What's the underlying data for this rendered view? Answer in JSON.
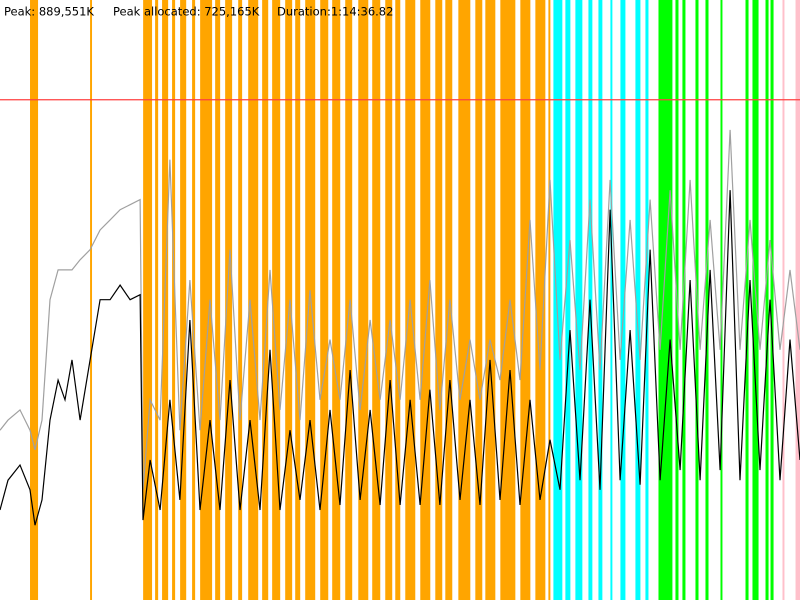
{
  "header": {
    "peak": "Peak: 889,551K",
    "peak_allocated": "Peak allocated: 725,165K",
    "duration": "Duration:1:14:36.82"
  },
  "chart_data": {
    "type": "line",
    "xlim": [
      0,
      4477
    ],
    "ylim": [
      0,
      1067000
    ],
    "peak": 889551,
    "peak_color": "#ff4040",
    "bands": [
      {
        "color": "#ffa500",
        "ranges": [
          [
            168,
            213
          ],
          [
            504,
            515
          ],
          [
            801,
            851
          ],
          [
            868,
            885
          ],
          [
            907,
            941
          ],
          [
            963,
            980
          ],
          [
            1008,
            1042
          ],
          [
            1075,
            1092
          ],
          [
            1120,
            1187
          ],
          [
            1204,
            1232
          ],
          [
            1260,
            1299
          ],
          [
            1333,
            1355
          ],
          [
            1389,
            1445
          ],
          [
            1467,
            1501
          ],
          [
            1523,
            1568
          ],
          [
            1596,
            1635
          ],
          [
            1652,
            1680
          ],
          [
            1708,
            1764
          ],
          [
            1792,
            1837
          ],
          [
            1859,
            1904
          ],
          [
            1932,
            1971
          ],
          [
            2005,
            2061
          ],
          [
            2083,
            2128
          ],
          [
            2156,
            2195
          ],
          [
            2212,
            2240
          ],
          [
            2268,
            2324
          ],
          [
            2352,
            2408
          ],
          [
            2436,
            2475
          ],
          [
            2492,
            2531
          ],
          [
            2565,
            2632
          ],
          [
            2660,
            2699
          ],
          [
            2716,
            2772
          ],
          [
            2800,
            2884
          ],
          [
            2912,
            2968
          ],
          [
            2996,
            3052
          ],
          [
            3069,
            3080
          ]
        ]
      },
      {
        "color": "#00ffff",
        "ranges": [
          [
            3097,
            3147
          ],
          [
            3164,
            3192
          ],
          [
            3220,
            3259
          ],
          [
            3293,
            3315
          ],
          [
            3349,
            3371
          ],
          [
            3416,
            3427
          ],
          [
            3472,
            3500
          ],
          [
            3556,
            3584
          ],
          [
            3612,
            3629
          ]
        ]
      },
      {
        "color": "#00ff00",
        "ranges": [
          [
            3685,
            3763
          ],
          [
            3780,
            3797
          ],
          [
            3819,
            3836
          ],
          [
            3892,
            3909
          ],
          [
            3948,
            3965
          ],
          [
            4032,
            4043
          ],
          [
            4172,
            4189
          ],
          [
            4211,
            4245
          ],
          [
            4284,
            4301
          ],
          [
            4312,
            4329
          ]
        ]
      },
      {
        "color": "#ffc0cb",
        "ranges": [
          [
            4379,
            4390
          ],
          [
            4452,
            4477
          ]
        ]
      }
    ],
    "x": [
      0,
      45,
      112,
      168,
      196,
      235,
      280,
      325,
      364,
      403,
      448,
      504,
      560,
      616,
      672,
      728,
      784,
      800,
      840,
      896,
      951,
      1007,
      1063,
      1119,
      1175,
      1231,
      1287,
      1343,
      1399,
      1455,
      1511,
      1567,
      1623,
      1679,
      1735,
      1791,
      1847,
      1903,
      1959,
      2015,
      2071,
      2127,
      2183,
      2239,
      2295,
      2351,
      2406,
      2462,
      2518,
      2574,
      2630,
      2686,
      2742,
      2798,
      2854,
      2910,
      2966,
      3022,
      3078,
      3134,
      3190,
      3246,
      3302,
      3358,
      3414,
      3470,
      3526,
      3582,
      3638,
      3694,
      3750,
      3806,
      3862,
      3918,
      3974,
      4030,
      4086,
      4141,
      4197,
      4253,
      4309,
      4365,
      4421,
      4477
    ],
    "series": [
      {
        "color": "#a0a0a0",
        "values": [
          302000,
          320000,
          338000,
          302000,
          267000,
          320000,
          534000,
          587000,
          587000,
          587000,
          605000,
          623000,
          658000,
          676000,
          694000,
          703000,
          712000,
          196000,
          356000,
          320000,
          783000,
          302000,
          569000,
          302000,
          534000,
          320000,
          623000,
          320000,
          534000,
          320000,
          587000,
          338000,
          534000,
          320000,
          551000,
          356000,
          463000,
          356000,
          534000,
          338000,
          498000,
          356000,
          498000,
          356000,
          534000,
          356000,
          569000,
          338000,
          534000,
          356000,
          463000,
          356000,
          463000,
          391000,
          534000,
          391000,
          676000,
          409000,
          747000,
          427000,
          640000,
          409000,
          712000,
          409000,
          747000,
          427000,
          676000,
          427000,
          712000,
          445000,
          729000,
          445000,
          747000,
          445000,
          676000,
          445000,
          836000,
          445000,
          676000,
          445000,
          640000,
          445000,
          587000,
          445000
        ]
      },
      {
        "color": "#000000",
        "values": [
          160000,
          213000,
          240000,
          196000,
          133000,
          178000,
          320000,
          391000,
          356000,
          427000,
          320000,
          427000,
          534000,
          534000,
          560000,
          534000,
          543000,
          142000,
          249000,
          160000,
          356000,
          178000,
          498000,
          160000,
          320000,
          160000,
          391000,
          160000,
          320000,
          160000,
          445000,
          160000,
          302000,
          178000,
          320000,
          160000,
          338000,
          169000,
          409000,
          178000,
          338000,
          169000,
          391000,
          169000,
          356000,
          169000,
          374000,
          169000,
          391000,
          178000,
          356000,
          169000,
          427000,
          178000,
          409000,
          169000,
          356000,
          178000,
          285000,
          196000,
          480000,
          213000,
          534000,
          196000,
          694000,
          213000,
          480000,
          205000,
          623000,
          213000,
          463000,
          231000,
          569000,
          213000,
          587000,
          231000,
          729000,
          213000,
          569000,
          231000,
          534000,
          213000,
          463000,
          249000
        ]
      }
    ]
  }
}
